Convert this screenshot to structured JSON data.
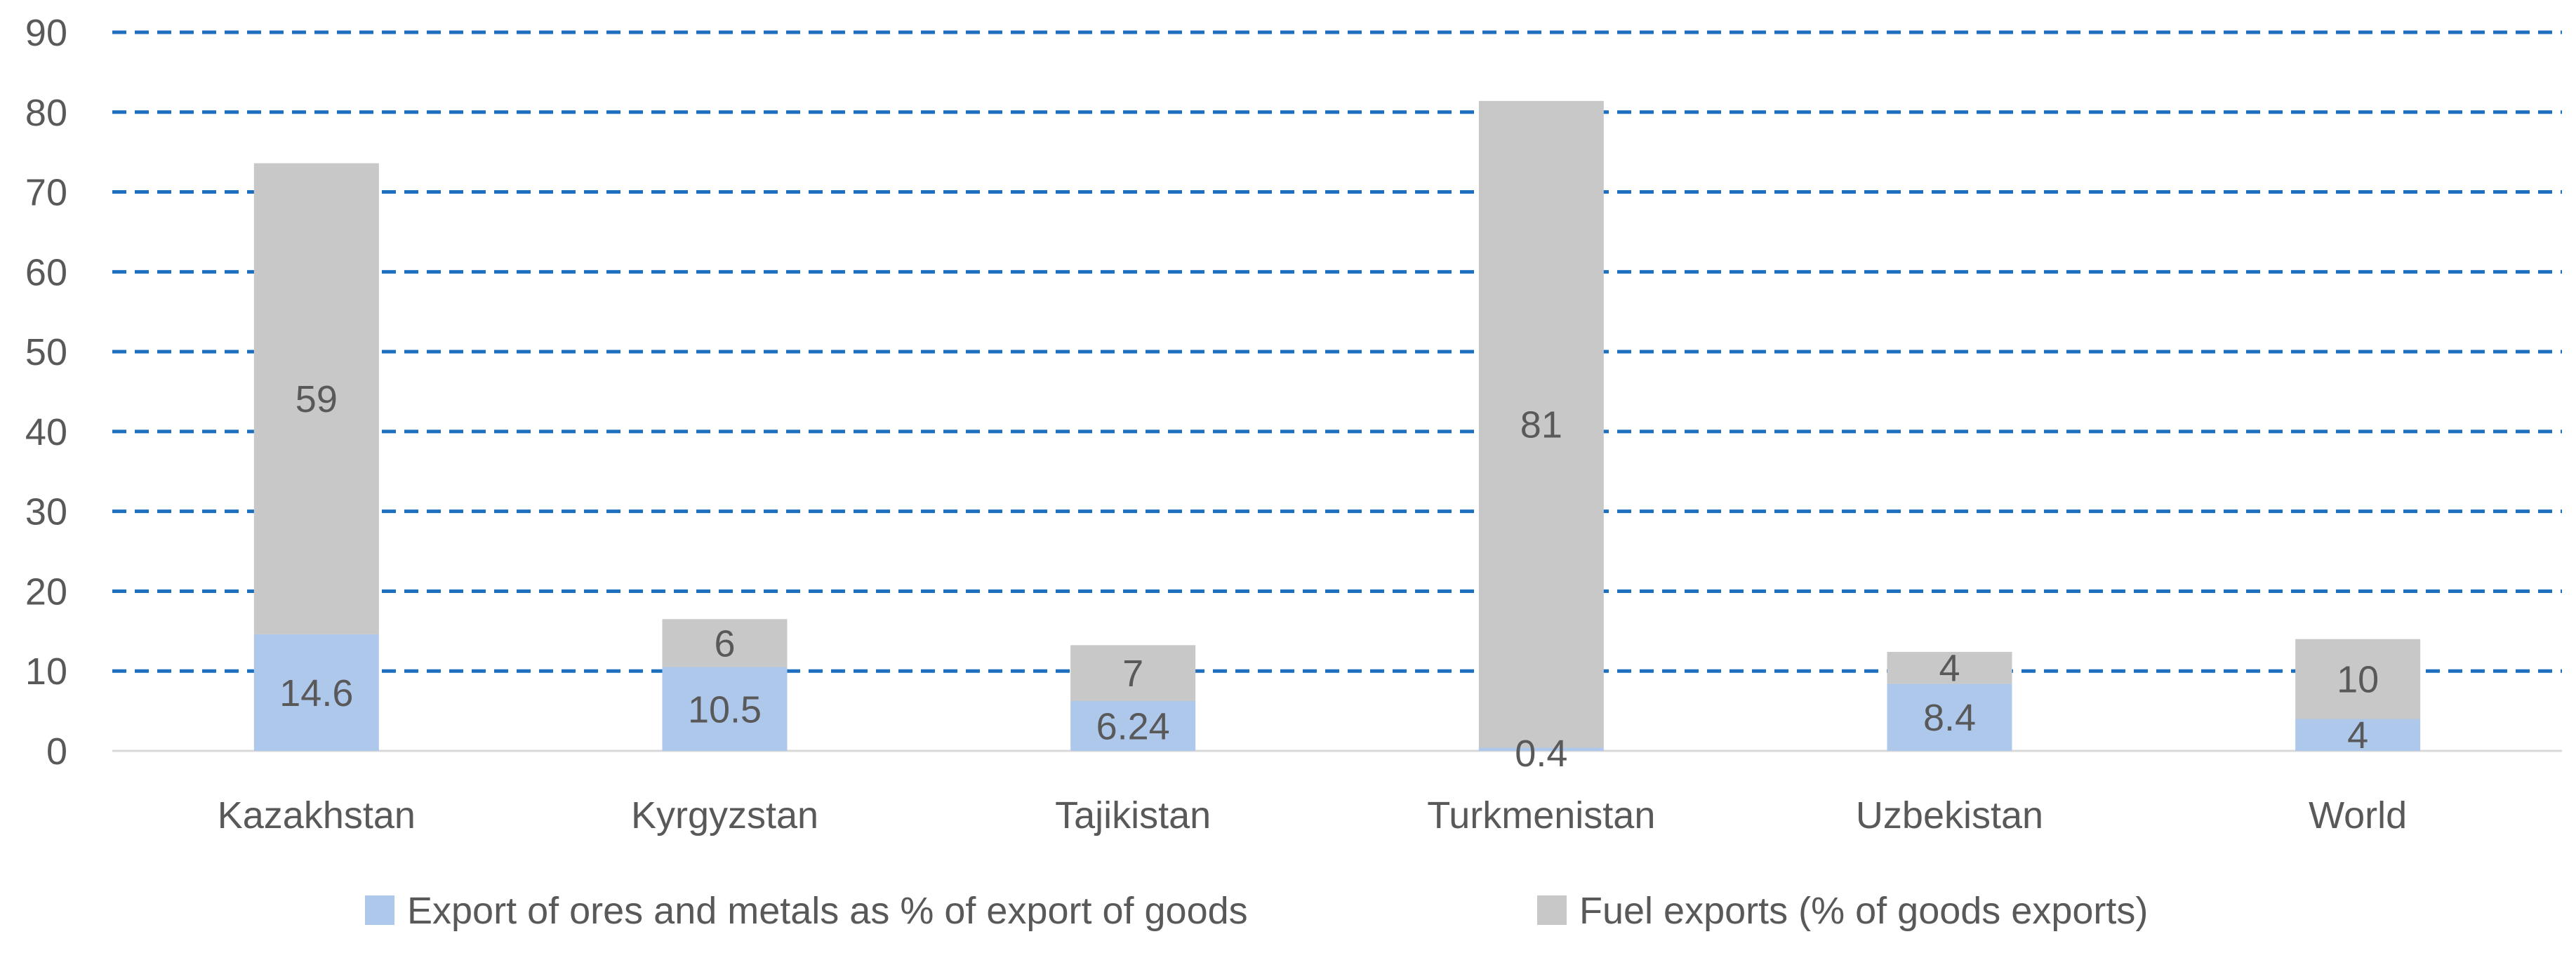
{
  "chart_data": {
    "type": "bar",
    "stacked": true,
    "categories": [
      "Kazakhstan",
      "Kyrgyzstan",
      "Tajikistan",
      "Turkmenistan",
      "Uzbekistan",
      "World"
    ],
    "series": [
      {
        "name": "Export of ores and metals as % of export of goods",
        "values": [
          14.6,
          10.5,
          6.24,
          0.4,
          8.4,
          4
        ],
        "labels": [
          "14.6",
          "10.5",
          "6.24",
          "0.4",
          "8.4",
          "4"
        ],
        "color": "#AEC8EC"
      },
      {
        "name": "Fuel exports (% of goods exports)",
        "values": [
          59,
          6,
          7,
          81,
          4,
          10
        ],
        "labels": [
          "59",
          "6",
          "7",
          "81",
          "4",
          "10"
        ],
        "color": "#C8C8C8"
      }
    ],
    "yticks": [
      "0",
      "10",
      "20",
      "30",
      "40",
      "50",
      "60",
      "70",
      "80",
      "90"
    ],
    "ylim": [
      0,
      90
    ],
    "grid": true,
    "grid_color": "#1F6FBF",
    "legend_position": "bottom",
    "label_color": "#595959"
  }
}
